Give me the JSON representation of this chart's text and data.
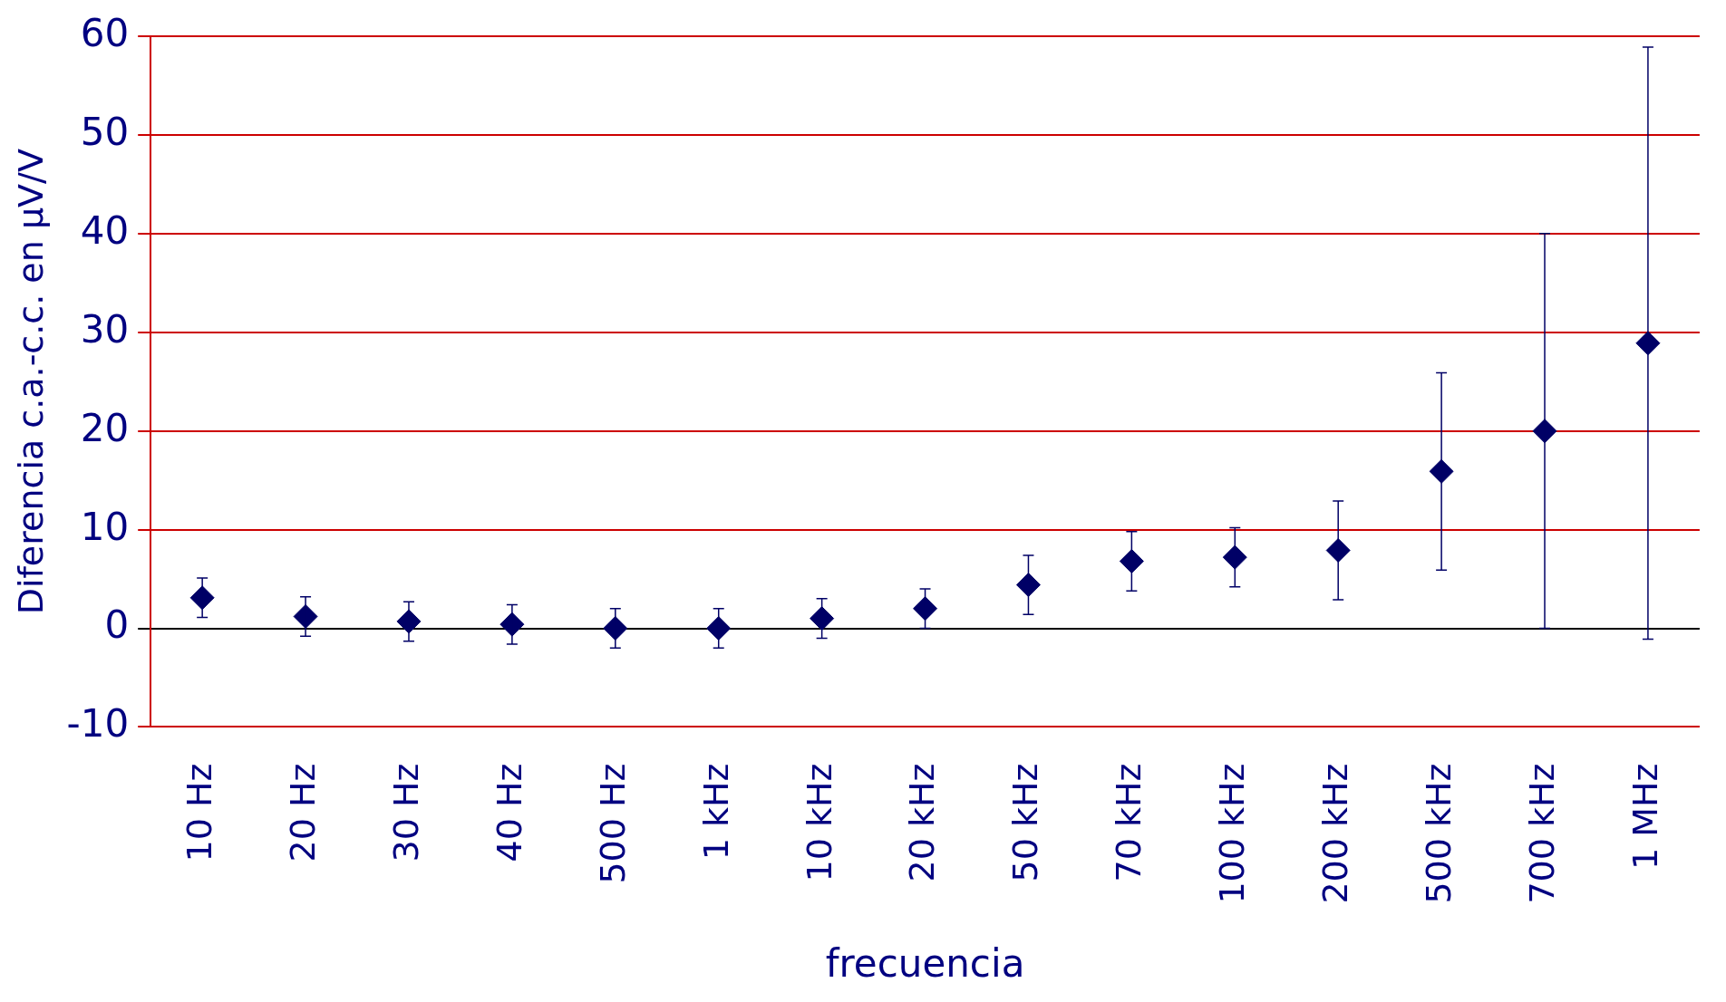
{
  "chart_data": {
    "type": "scatter",
    "categories": [
      "10 Hz",
      "20 Hz",
      "30 Hz",
      "40 Hz",
      "500 Hz",
      "1 kHz",
      "10 kHz",
      "20 kHz",
      "50 kHz",
      "70 kHz",
      "100 kHz",
      "200 kHz",
      "500 kHz",
      "700 kHz",
      "1 MHz"
    ],
    "values": [
      3.1,
      1.2,
      0.7,
      0.4,
      0,
      0,
      1,
      2,
      4.4,
      6.8,
      7.2,
      7.9,
      15.9,
      20,
      28.9
    ],
    "errors": [
      2,
      2,
      2,
      2,
      2,
      2,
      2,
      2,
      3,
      3,
      3,
      5,
      10,
      20,
      30
    ],
    "color": "#000066",
    "xlabel": "frecuencia",
    "ylabel": "Diferencia c.a.-c.c. en µV/V",
    "ylim": [
      -10,
      60
    ],
    "yticks": [
      -10,
      0,
      10,
      20,
      30,
      40,
      50,
      60
    ],
    "grid": "y",
    "marker": "diamond",
    "legend": false
  }
}
